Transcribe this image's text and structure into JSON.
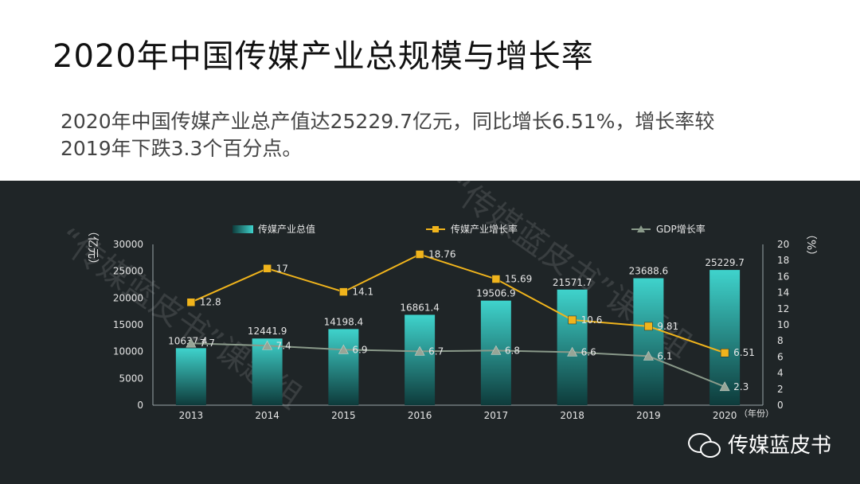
{
  "page": {
    "title": "2020年中国传媒产业总规模与增长率",
    "subtitle": "2020年中国传媒产业总产值达25229.7亿元，同比增长6.51%，增长率较2019年下跌3.3个百分点。",
    "brand": "传媒蓝皮书",
    "watermark": "“传媒蓝皮书”课题组"
  },
  "colors": {
    "panel_bg": "#1f2527",
    "bar_top": "#3fd3cc",
    "bar_bottom": "#0e3b3b",
    "media_growth": "#f0b41c",
    "gdp_growth": "#8a9a8a",
    "text": "#e6e6e6"
  },
  "chart_data": {
    "type": "bar",
    "categories": [
      "2013",
      "2014",
      "2015",
      "2016",
      "2017",
      "2018",
      "2019",
      "2020"
    ],
    "xlabel": "（年份）",
    "ylabel_left": "（亿元）",
    "ylabel_right": "（%）",
    "ylim_left": [
      0,
      30000
    ],
    "ylim_right": [
      0,
      20
    ],
    "yticks_left": [
      0,
      5000,
      10000,
      15000,
      20000,
      25000,
      30000
    ],
    "yticks_right": [
      0,
      2,
      4,
      6,
      8,
      10,
      12,
      14,
      16,
      18,
      20
    ],
    "legend_position": "top",
    "series": [
      {
        "name": "传媒产业总值",
        "type": "bar",
        "axis": "left",
        "values": [
          10637.4,
          12441.9,
          14198.4,
          16861.4,
          19506.9,
          21571.7,
          23688.6,
          25229.7
        ],
        "labels": [
          "10637.4",
          "12441.9",
          "14198.4",
          "16861.4",
          "19506.9",
          "21571.7",
          "23688.6",
          "25229.7"
        ]
      },
      {
        "name": "传媒产业增长率",
        "type": "line",
        "axis": "right",
        "values": [
          12.8,
          17,
          14.1,
          18.76,
          15.69,
          10.6,
          9.81,
          6.51
        ],
        "labels": [
          "12.8",
          "17",
          "14.1",
          "18.76",
          "15.69",
          "10.6",
          "9.81",
          "6.51"
        ]
      },
      {
        "name": "GDP增长率",
        "type": "line",
        "axis": "right",
        "values": [
          7.7,
          7.4,
          6.9,
          6.7,
          6.8,
          6.6,
          6.1,
          2.3
        ],
        "labels": [
          "7.7",
          "7.4",
          "6.9",
          "6.7",
          "6.8",
          "6.6",
          "6.1",
          "2.3"
        ]
      }
    ]
  }
}
